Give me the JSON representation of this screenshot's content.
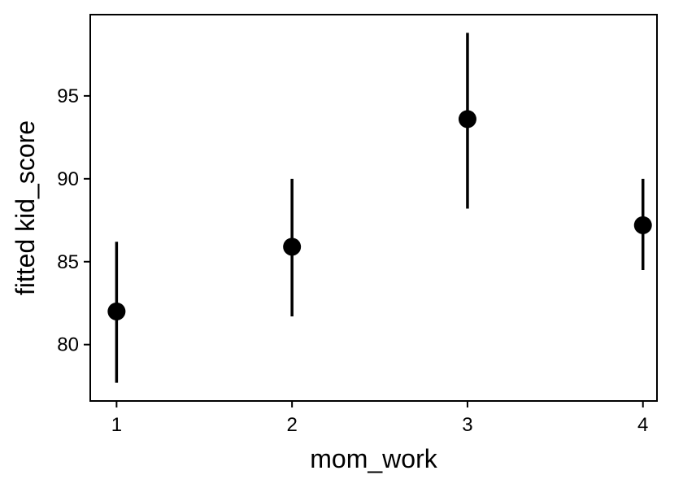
{
  "chart_data": {
    "type": "scatter",
    "xlabel": "mom_work",
    "ylabel": "fitted kid_score",
    "x": [
      1,
      2,
      3,
      4
    ],
    "y": [
      82.0,
      85.9,
      93.6,
      87.2
    ],
    "y_lower": [
      77.7,
      81.7,
      88.2,
      84.5
    ],
    "y_upper": [
      86.2,
      90.0,
      98.8,
      90.0
    ],
    "xticks": [
      "1",
      "2",
      "3",
      "4"
    ],
    "yticks": [
      "80",
      "85",
      "90",
      "95"
    ],
    "xlim": [
      0.85,
      4.08
    ],
    "ylim": [
      76.6,
      99.9
    ],
    "grid": false,
    "legend": "none",
    "colors": {
      "point": "#000000",
      "errorbar": "#000000",
      "axis": "#000000",
      "background": "#ffffff"
    }
  }
}
